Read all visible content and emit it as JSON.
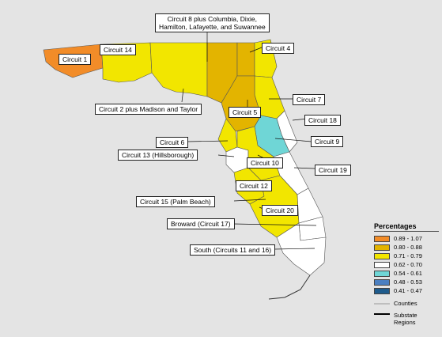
{
  "legend": {
    "title": "Percentages",
    "bins": [
      {
        "label": "0.89 - 1.07",
        "color": "#f28c28"
      },
      {
        "label": "0.80 - 0.88",
        "color": "#e3b400"
      },
      {
        "label": "0.71 - 0.79",
        "color": "#f2e600"
      },
      {
        "label": "0.62 - 0.70",
        "color": "#ffffff"
      },
      {
        "label": "0.54 - 0.61",
        "color": "#6fd6d6"
      },
      {
        "label": "0.48 - 0.53",
        "color": "#4a7fc1"
      },
      {
        "label": "0.41 - 0.47",
        "color": "#1e5b8c"
      }
    ],
    "counties_label": "Counties",
    "substate_label": "Substate\nRegions"
  },
  "labels": {
    "circuit1": "Circuit 1",
    "circuit14": "Circuit 14",
    "circuit8": "Circuit 8 plus Columbia, Dixie,\nHamilton, Lafayette, and Suwannee",
    "circuit4": "Circuit 4",
    "circuit2": "Circuit 2 plus Madison and Taylor",
    "circuit7": "Circuit 7",
    "circuit5": "Circuit 5",
    "circuit18": "Circuit 18",
    "circuit6": "Circuit 6",
    "circuit9": "Circuit 9",
    "circuit13": "Circuit 13 (Hillsborough)",
    "circuit10": "Circuit 10",
    "circuit19": "Circuit 19",
    "circuit12": "Circuit 12",
    "circuit15": "Circuit 15 (Palm Beach)",
    "circuit20": "Circuit 20",
    "circuit17": "Broward (Circuit 17)",
    "south": "South (Circuits 11 and 16)"
  },
  "regions": {
    "circuit1": {
      "bin": 0
    },
    "circuit14": {
      "bin": 2
    },
    "circuit2": {
      "bin": 2
    },
    "circuit8": {
      "bin": 1
    },
    "circuit3": {
      "bin": 1
    },
    "circuit4": {
      "bin": 2
    },
    "circuit7": {
      "bin": 2
    },
    "circuit5": {
      "bin": 1
    },
    "circuit18": {
      "bin": 3
    },
    "circuit9": {
      "bin": 4
    },
    "circuit6": {
      "bin": 2
    },
    "circuit13": {
      "bin": 3
    },
    "circuit10": {
      "bin": 2
    },
    "circuit19": {
      "bin": 3
    },
    "circuit12": {
      "bin": 2
    },
    "circuit20": {
      "bin": 2
    },
    "circuit15": {
      "bin": 3
    },
    "circuit17": {
      "bin": 3
    },
    "south": {
      "bin": 3
    }
  }
}
